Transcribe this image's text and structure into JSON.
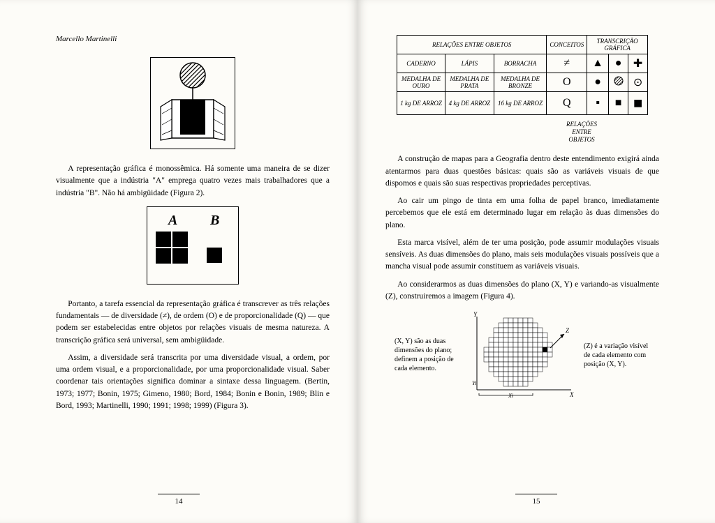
{
  "left": {
    "author": "Marcello Martinelli",
    "para1": "A representação gráfica é monossêmica. Há somente uma maneira de se dizer visualmente que a indústria \"A\" emprega quatro vezes mais trabalhadores que a indústria \"B\". Não há ambigüidade (Figura 2).",
    "para2": "Portanto, a tarefa essencial da representação gráfica é transcrever as três relações fundamentais — de diversidade (≠), de ordem (O) e de proporcionalidade (Q) — que podem ser estabelecidas entre objetos por relações visuais de mesma natureza. A transcrição gráfica será universal, sem ambigüidade.",
    "para3": "Assim, a diversidade será transcrita por uma diversidade visual, a ordem, por uma ordem visual, e a proporcionalidade, por uma proporcionalidade visual. Saber coordenar tais orientações significa dominar a sintaxe dessa linguagem. (Bertin, 1973; 1977; Bonin, 1975; Gimeno, 1980; Bord, 1984; Bonin e Bonin, 1989; Blin e Bord, 1993; Martinelli, 1990; 1991; 1998; 1999) (Figura 3).",
    "pageNum": "14",
    "fig2": {
      "labelA": "A",
      "labelB": "B"
    }
  },
  "right": {
    "table": {
      "h1": "RELAÇÕES ENTRE OBJETOS",
      "h2": "CONCEITOS",
      "h3": "TRANSCRIÇÃO GRÁFICA",
      "r1c1": "CADERNO",
      "r1c2": "LÁPIS",
      "r1c3": "BORRACHA",
      "r2c1": "MEDALHA DE OURO",
      "r2c2": "MEDALHA DE PRATA",
      "r2c3": "MEDALHA DE BRONZE",
      "r3c1": "1 kg DE ARROZ",
      "r3c2": "4 kg DE ARROZ",
      "r3c3": "16 kg DE ARROZ",
      "sym1": "≠",
      "sym2": "O",
      "sym3": "Q"
    },
    "caption": "RELAÇÕES ENTRE OBJETOS",
    "caption2": "RELAÇÕES\nENTRE\nOBJETOS",
    "para1": "A construção de mapas para a Geografia dentro deste entendimento exigirá ainda atentarmos para duas questões básicas: quais são as variáveis visuais de que dispomos e quais são suas respectivas propriedades perceptivas.",
    "para2": "Ao cair um pingo de tinta em uma folha de papel branco, imediatamente percebemos que ele está em determinado lugar em relação às duas dimensões do plano.",
    "para3": "Esta marca visível, além de ter uma posição, pode assumir modulações visuais sensíveis. As duas dimensões do plano, mais seis modulações visuais possíveis que a mancha visual pode assumir constituem as variáveis visuais.",
    "para4": "Ao considerarmos as duas dimensões do plano (X, Y) e variando-as visualmente (Z), construiremos a imagem (Figura 4).",
    "fig4left": "(X, Y) são as duas dimensões do plano; definem a posição de cada elemento.",
    "fig4right": "(Z) é a variação visível de cada elemento com posição (X, Y).",
    "pageNum": "15"
  },
  "colors": {
    "ink": "#000000",
    "paper": "#fdfcf8",
    "hatch": "#000000"
  }
}
